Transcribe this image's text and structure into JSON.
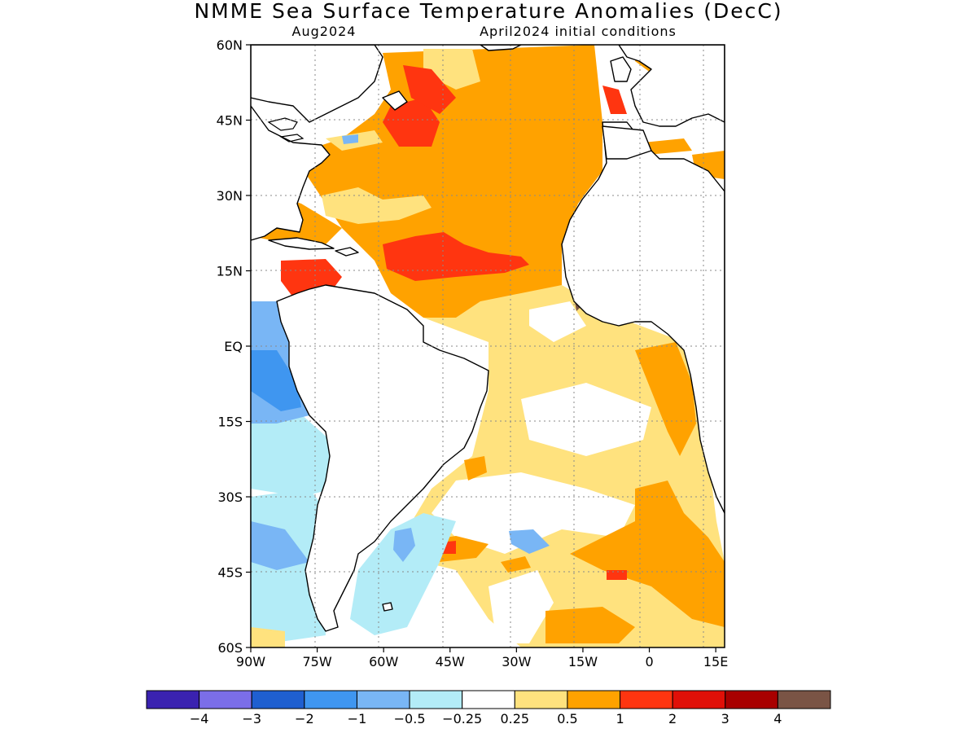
{
  "map": {
    "title": "NMME Sea Surface Temperature Anomalies (DecC)",
    "target_month": "Aug2024",
    "init_label": "April2024 initial conditions",
    "lat_labels": [
      "60N",
      "45N",
      "30N",
      "15N",
      "EQ",
      "15S",
      "30S",
      "45S",
      "60S"
    ],
    "lon_labels": [
      "90W",
      "75W",
      "60W",
      "45W",
      "30W",
      "15W",
      "0",
      "15E"
    ],
    "lat_values": [
      60,
      45,
      30,
      15,
      0,
      -15,
      -30,
      -45,
      -60
    ],
    "lon_values": [
      -90,
      -75,
      -60,
      -45,
      -30,
      -15,
      0,
      15
    ],
    "extent": {
      "lon_min": -90,
      "lon_max": 17,
      "lat_min": -60,
      "lat_max": 60
    }
  },
  "colorbar": {
    "labels": [
      "−4",
      "−3",
      "−2",
      "−1",
      "−0.5",
      "−0.25",
      "0.25",
      "0.5",
      "1",
      "2",
      "3",
      "4"
    ],
    "colors": [
      "#3a22b0",
      "#7b6ee8",
      "#1f5fd0",
      "#3f96f0",
      "#79b6f5",
      "#b3ecf7",
      "#ffffff",
      "#ffe27e",
      "#ffa200",
      "#ff3510",
      "#e01008",
      "#a80000",
      "#7a5445"
    ]
  },
  "legend_classes": {
    "warm1": "#ffe27e",
    "warm2": "#ffa200",
    "warm3": "#ff3510",
    "cool1": "#b3ecf7",
    "cool2": "#79b6f5",
    "cool3": "#3f96f0",
    "extreme": "#7a5445"
  }
}
